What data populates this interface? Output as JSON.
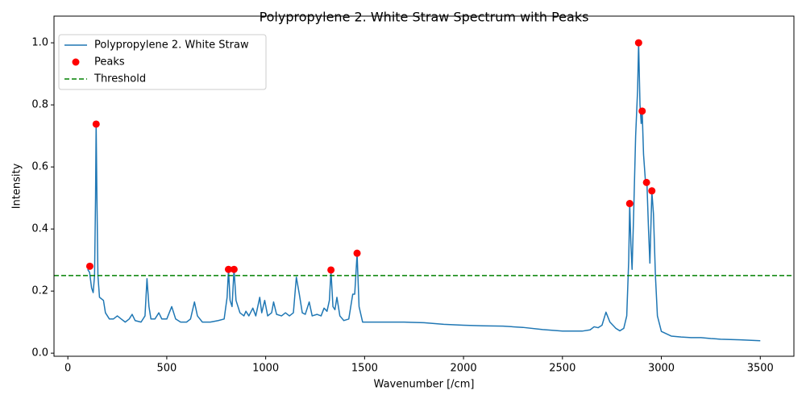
{
  "chart_data": {
    "type": "line",
    "title": "Polypropylene 2. White Straw Spectrum with Peaks",
    "xlabel": "Wavenumber [/cm]",
    "ylabel": "Intensity",
    "xlim": [
      -70,
      3670
    ],
    "ylim": [
      -0.01,
      1.086
    ],
    "xticks": [
      0,
      500,
      1000,
      1500,
      2000,
      2500,
      3000,
      3500
    ],
    "yticks": [
      {
        "value": 0,
        "label": "0.0"
      },
      0.2,
      0.4,
      0.6,
      0.8,
      {
        "value": 1,
        "label": "1.0"
      }
    ],
    "legend": "upper left",
    "series": [
      {
        "name": "Polypropylene 2. White Straw",
        "type": "line",
        "color": "#1f77b4",
        "x": [
          100,
          110,
          120,
          128,
          135,
          140,
          143,
          147,
          152,
          160,
          170,
          180,
          190,
          210,
          230,
          250,
          270,
          290,
          310,
          325,
          340,
          370,
          390,
          400,
          410,
          420,
          440,
          460,
          475,
          500,
          525,
          545,
          570,
          600,
          620,
          640,
          655,
          680,
          720,
          760,
          790,
          805,
          812,
          820,
          830,
          840,
          850,
          870,
          890,
          900,
          915,
          935,
          950,
          970,
          980,
          995,
          1010,
          1030,
          1040,
          1055,
          1080,
          1100,
          1120,
          1140,
          1155,
          1170,
          1185,
          1200,
          1220,
          1235,
          1260,
          1280,
          1295,
          1310,
          1322,
          1330,
          1340,
          1350,
          1360,
          1375,
          1395,
          1420,
          1440,
          1450,
          1462,
          1472,
          1490,
          1600,
          1700,
          1800,
          1900,
          2000,
          2100,
          2200,
          2300,
          2400,
          2500,
          2600,
          2640,
          2660,
          2680,
          2700,
          2720,
          2740,
          2770,
          2790,
          2810,
          2825,
          2835,
          2840,
          2846,
          2852,
          2860,
          2870,
          2880,
          2885,
          2892,
          2898,
          2903,
          2910,
          2920,
          2927,
          2935,
          2942,
          2952,
          2960,
          2970,
          2980,
          3000,
          3050,
          3100,
          3150,
          3200,
          3250,
          3300,
          3400,
          3500
        ],
        "values": [
          0.27,
          0.26,
          0.21,
          0.195,
          0.25,
          0.5,
          0.74,
          0.5,
          0.25,
          0.18,
          0.175,
          0.17,
          0.13,
          0.11,
          0.11,
          0.12,
          0.11,
          0.1,
          0.11,
          0.125,
          0.105,
          0.1,
          0.12,
          0.24,
          0.15,
          0.11,
          0.11,
          0.13,
          0.11,
          0.11,
          0.15,
          0.11,
          0.1,
          0.1,
          0.11,
          0.165,
          0.12,
          0.1,
          0.1,
          0.105,
          0.11,
          0.18,
          0.27,
          0.17,
          0.15,
          0.27,
          0.17,
          0.13,
          0.12,
          0.135,
          0.12,
          0.145,
          0.12,
          0.18,
          0.13,
          0.17,
          0.12,
          0.13,
          0.165,
          0.125,
          0.12,
          0.13,
          0.12,
          0.13,
          0.245,
          0.19,
          0.13,
          0.125,
          0.165,
          0.12,
          0.125,
          0.12,
          0.145,
          0.135,
          0.17,
          0.265,
          0.15,
          0.14,
          0.18,
          0.12,
          0.105,
          0.11,
          0.19,
          0.19,
          0.32,
          0.15,
          0.1,
          0.1,
          0.1,
          0.098,
          0.093,
          0.09,
          0.088,
          0.087,
          0.083,
          0.076,
          0.071,
          0.071,
          0.075,
          0.085,
          0.082,
          0.09,
          0.132,
          0.1,
          0.08,
          0.072,
          0.08,
          0.12,
          0.3,
          0.48,
          0.35,
          0.27,
          0.45,
          0.7,
          0.85,
          1.0,
          0.8,
          0.74,
          0.78,
          0.64,
          0.55,
          0.55,
          0.4,
          0.29,
          0.52,
          0.45,
          0.25,
          0.12,
          0.07,
          0.055,
          0.052,
          0.05,
          0.05,
          0.047,
          0.045,
          0.043,
          0.04
        ]
      },
      {
        "name": "Peaks",
        "type": "scatter",
        "color": "#ff0000",
        "x": [
          111,
          143,
          812,
          840,
          1330,
          1462,
          2840,
          2885,
          2903,
          2925,
          2952
        ],
        "values": [
          0.28,
          0.738,
          0.27,
          0.27,
          0.268,
          0.322,
          0.482,
          1.0,
          0.78,
          0.55,
          0.523
        ]
      },
      {
        "name": "Threshold",
        "type": "hline",
        "color": "#008000",
        "values": [
          0.25
        ]
      }
    ]
  }
}
